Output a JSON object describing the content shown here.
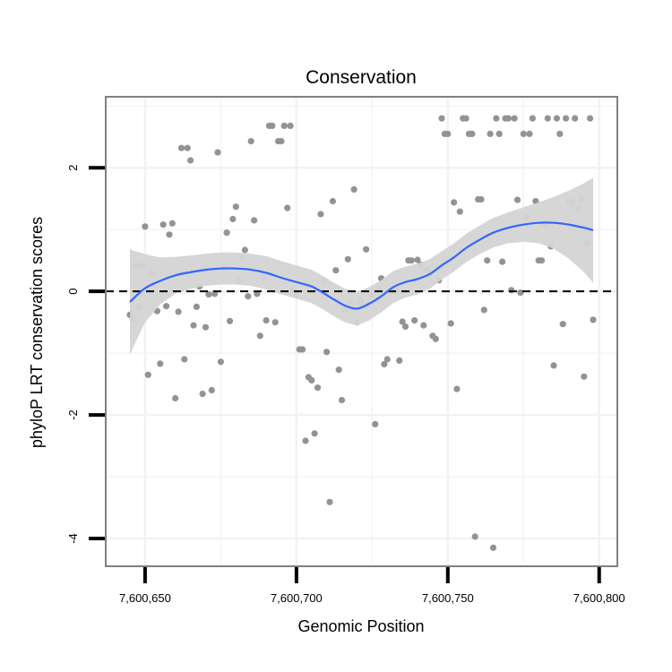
{
  "chart_data": {
    "type": "scatter",
    "title": "Conservation",
    "xlabel": "Genomic Position",
    "ylabel": "phyloP LRT conservation scores",
    "xlim": [
      7600637,
      7600806
    ],
    "ylim": [
      -4.45,
      3.15
    ],
    "x_ticks": [
      7600650,
      7600700,
      7600750,
      7600800
    ],
    "x_tick_labels": [
      "7,600,650",
      "7,600,700",
      "7,600,750",
      "7,600,800"
    ],
    "y_ticks": [
      2,
      0,
      -2,
      -4
    ],
    "y_tick_labels": [
      "2",
      "0",
      "-2",
      "-4"
    ],
    "grid": true,
    "reference_line": {
      "y": 0,
      "style": "dashed"
    },
    "colors": {
      "points": "#939393",
      "smooth": "#3366ff",
      "ribbon": "#d4d4d4",
      "panel_border": "#808080",
      "grid": "#f2f2f2"
    },
    "series": [
      {
        "points": [
          [
            7600645,
            -0.38
          ],
          [
            7600646,
            -0.45
          ],
          [
            7600647,
            0.4
          ],
          [
            7600648,
            -0.25
          ],
          [
            7600649,
            0.42
          ],
          [
            7600650,
            1.05
          ],
          [
            7600651,
            -1.35
          ],
          [
            7600652,
            0.3
          ],
          [
            7600653,
            0.28
          ],
          [
            7600654,
            -0.32
          ],
          [
            7600655,
            -1.17
          ],
          [
            7600656,
            1.08
          ],
          [
            7600657,
            -0.24
          ],
          [
            7600658,
            0.92
          ],
          [
            7600659,
            1.1
          ],
          [
            7600660,
            -1.73
          ],
          [
            7600661,
            -0.33
          ],
          [
            7600662,
            2.32
          ],
          [
            7600663,
            -1.1
          ],
          [
            7600664,
            2.32
          ],
          [
            7600665,
            2.12
          ],
          [
            7600666,
            -0.55
          ],
          [
            7600667,
            -0.25
          ],
          [
            7600668,
            0.08
          ],
          [
            7600669,
            -1.66
          ],
          [
            7600670,
            -0.58
          ],
          [
            7600671,
            -0.05
          ],
          [
            7600672,
            -1.6
          ],
          [
            7600673,
            -0.04
          ],
          [
            7600674,
            2.25
          ],
          [
            7600675,
            -1.14
          ],
          [
            7600676,
            0.38
          ],
          [
            7600677,
            0.95
          ],
          [
            7600678,
            -0.48
          ],
          [
            7600679,
            1.17
          ],
          [
            7600680,
            1.37
          ],
          [
            7600681,
            0.17
          ],
          [
            7600682,
            0.55
          ],
          [
            7600683,
            0.67
          ],
          [
            7600684,
            -0.08
          ],
          [
            7600685,
            2.43
          ],
          [
            7600686,
            1.15
          ],
          [
            7600687,
            -0.04
          ],
          [
            7600688,
            -0.72
          ],
          [
            7600689,
            0.22
          ],
          [
            7600690,
            -0.47
          ],
          [
            7600691,
            2.68
          ],
          [
            7600692,
            2.68
          ],
          [
            7600693,
            -0.5
          ],
          [
            7600694,
            2.43
          ],
          [
            7600695,
            2.43
          ],
          [
            7600696,
            2.68
          ],
          [
            7600697,
            1.35
          ],
          [
            7600698,
            2.68
          ],
          [
            7600699,
            0.03
          ],
          [
            7600700,
            -0.06
          ],
          [
            7600701,
            -0.94
          ],
          [
            7600702,
            -0.94
          ],
          [
            7600703,
            -2.42
          ],
          [
            7600704,
            -1.39
          ],
          [
            7600705,
            -1.44
          ],
          [
            7600706,
            -2.3
          ],
          [
            7600707,
            -1.56
          ],
          [
            7600708,
            1.25
          ],
          [
            7600709,
            0.17
          ],
          [
            7600710,
            -0.98
          ],
          [
            7600711,
            -3.41
          ],
          [
            7600712,
            1.46
          ],
          [
            7600713,
            0.34
          ],
          [
            7600714,
            -1.27
          ],
          [
            7600715,
            -1.76
          ],
          [
            7600716,
            -0.3
          ],
          [
            7600717,
            0.52
          ],
          [
            7600718,
            -0.18
          ],
          [
            7600719,
            1.65
          ],
          [
            7600720,
            -0.5
          ],
          [
            7600721,
            -0.15
          ],
          [
            7600722,
            -0.22
          ],
          [
            7600723,
            0.68
          ],
          [
            7600724,
            -0.2
          ],
          [
            7600725,
            -0.06
          ],
          [
            7600726,
            -2.15
          ],
          [
            7600727,
            0.03
          ],
          [
            7600728,
            0.21
          ],
          [
            7600729,
            -1.18
          ],
          [
            7600730,
            -1.1
          ],
          [
            7600731,
            0.01
          ],
          [
            7600732,
            0.01
          ],
          [
            7600733,
            0.01
          ],
          [
            7600734,
            -1.12
          ],
          [
            7600735,
            -0.49
          ],
          [
            7600736,
            -0.57
          ],
          [
            7600737,
            0.5
          ],
          [
            7600738,
            0.5
          ],
          [
            7600739,
            -0.47
          ],
          [
            7600740,
            0.51
          ],
          [
            7600741,
            0.43
          ],
          [
            7600742,
            -0.55
          ],
          [
            7600743,
            0.34
          ],
          [
            7600744,
            0.27
          ],
          [
            7600745,
            -0.72
          ],
          [
            7600746,
            -0.77
          ],
          [
            7600747,
            0.18
          ],
          [
            7600748,
            2.8
          ],
          [
            7600749,
            2.55
          ],
          [
            7600750,
            2.55
          ],
          [
            7600751,
            -0.52
          ],
          [
            7600752,
            1.44
          ],
          [
            7600753,
            -1.58
          ],
          [
            7600754,
            1.29
          ],
          [
            7600755,
            2.8
          ],
          [
            7600756,
            2.8
          ],
          [
            7600757,
            2.55
          ],
          [
            7600758,
            2.55
          ],
          [
            7600759,
            -3.97
          ],
          [
            7600760,
            1.49
          ],
          [
            7600761,
            1.49
          ],
          [
            7600762,
            -0.3
          ],
          [
            7600763,
            0.5
          ],
          [
            7600764,
            2.55
          ],
          [
            7600765,
            -4.15
          ],
          [
            7600766,
            2.8
          ],
          [
            7600767,
            2.55
          ],
          [
            7600768,
            0.48
          ],
          [
            7600769,
            2.8
          ],
          [
            7600770,
            2.8
          ],
          [
            7600771,
            0.02
          ],
          [
            7600772,
            2.8
          ],
          [
            7600773,
            1.48
          ],
          [
            7600774,
            -0.02
          ],
          [
            7600775,
            2.55
          ],
          [
            7600776,
            1.21
          ],
          [
            7600777,
            2.55
          ],
          [
            7600778,
            2.8
          ],
          [
            7600779,
            1.46
          ],
          [
            7600780,
            0.5
          ],
          [
            7600781,
            0.5
          ],
          [
            7600782,
            1.09
          ],
          [
            7600783,
            2.8
          ],
          [
            7600784,
            0.73
          ],
          [
            7600785,
            -1.2
          ],
          [
            7600786,
            2.8
          ],
          [
            7600787,
            2.55
          ],
          [
            7600788,
            -0.53
          ],
          [
            7600789,
            2.8
          ],
          [
            7600790,
            1.46
          ],
          [
            7600791,
            1.44
          ],
          [
            7600792,
            2.8
          ],
          [
            7600793,
            1.33
          ],
          [
            7600794,
            1.48
          ],
          [
            7600795,
            -1.38
          ],
          [
            7600796,
            0.78
          ],
          [
            7600797,
            2.8
          ],
          [
            7600798,
            -0.46
          ]
        ]
      }
    ],
    "smooth": {
      "method": "loess",
      "points": [
        [
          7600645,
          -0.17
        ],
        [
          7600650,
          0.05
        ],
        [
          7600655,
          0.17
        ],
        [
          7600660,
          0.26
        ],
        [
          7600665,
          0.31
        ],
        [
          7600670,
          0.35
        ],
        [
          7600675,
          0.37
        ],
        [
          7600680,
          0.37
        ],
        [
          7600685,
          0.35
        ],
        [
          7600690,
          0.3
        ],
        [
          7600695,
          0.22
        ],
        [
          7600700,
          0.15
        ],
        [
          7600705,
          0.08
        ],
        [
          7600708,
          0.0
        ],
        [
          7600712,
          -0.12
        ],
        [
          7600716,
          -0.23
        ],
        [
          7600720,
          -0.28
        ],
        [
          7600724,
          -0.2
        ],
        [
          7600728,
          -0.08
        ],
        [
          7600732,
          0.07
        ],
        [
          7600736,
          0.15
        ],
        [
          7600740,
          0.2
        ],
        [
          7600744,
          0.28
        ],
        [
          7600748,
          0.42
        ],
        [
          7600752,
          0.55
        ],
        [
          7600756,
          0.7
        ],
        [
          7600760,
          0.82
        ],
        [
          7600765,
          0.95
        ],
        [
          7600770,
          1.03
        ],
        [
          7600775,
          1.08
        ],
        [
          7600780,
          1.11
        ],
        [
          7600785,
          1.11
        ],
        [
          7600790,
          1.08
        ],
        [
          7600795,
          1.03
        ],
        [
          7600798,
          0.99
        ]
      ],
      "ribbon_halfwidth": [
        [
          7600645,
          0.85
        ],
        [
          7600650,
          0.55
        ],
        [
          7600655,
          0.38
        ],
        [
          7600660,
          0.3
        ],
        [
          7600665,
          0.27
        ],
        [
          7600670,
          0.26
        ],
        [
          7600675,
          0.26
        ],
        [
          7600680,
          0.26
        ],
        [
          7600685,
          0.26
        ],
        [
          7600690,
          0.27
        ],
        [
          7600695,
          0.27
        ],
        [
          7600700,
          0.27
        ],
        [
          7600705,
          0.27
        ],
        [
          7600708,
          0.27
        ],
        [
          7600712,
          0.27
        ],
        [
          7600716,
          0.27
        ],
        [
          7600720,
          0.27
        ],
        [
          7600724,
          0.27
        ],
        [
          7600728,
          0.26
        ],
        [
          7600732,
          0.26
        ],
        [
          7600736,
          0.25
        ],
        [
          7600740,
          0.25
        ],
        [
          7600744,
          0.24
        ],
        [
          7600748,
          0.23
        ],
        [
          7600752,
          0.23
        ],
        [
          7600756,
          0.23
        ],
        [
          7600760,
          0.23
        ],
        [
          7600765,
          0.24
        ],
        [
          7600770,
          0.25
        ],
        [
          7600775,
          0.28
        ],
        [
          7600780,
          0.33
        ],
        [
          7600785,
          0.42
        ],
        [
          7600790,
          0.55
        ],
        [
          7600795,
          0.72
        ],
        [
          7600798,
          0.85
        ]
      ]
    }
  }
}
